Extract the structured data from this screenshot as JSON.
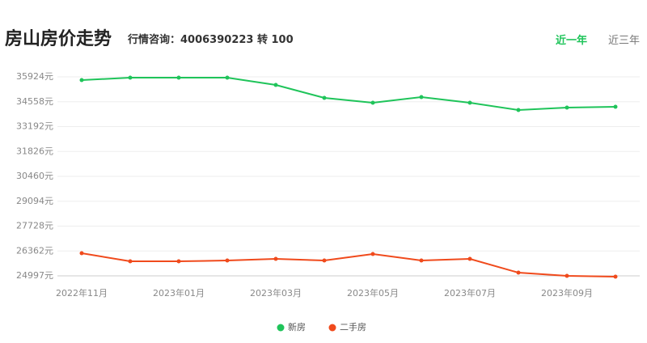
{
  "header": {
    "title": "房山房价走势",
    "hotline": "行情咨询：4006390223 转 100",
    "tabs": [
      "近一年",
      "近三年"
    ]
  },
  "chart_data": {
    "type": "line",
    "categories": [
      "2022年11月",
      null,
      "2023年01月",
      null,
      "2023年03月",
      null,
      "2023年05月",
      null,
      "2023年07月",
      null,
      "2023年09月",
      null
    ],
    "series": [
      {
        "name": "新房",
        "color": "#1fc45a",
        "values": [
          35746,
          35880,
          35880,
          35880,
          35480,
          34769,
          34502,
          34813,
          34502,
          34103,
          34236,
          34280
        ]
      },
      {
        "name": "二手房",
        "color": "#f04a1c",
        "values": [
          26239,
          25795,
          25795,
          25840,
          25929,
          25840,
          26195,
          25840,
          25929,
          25173,
          24997,
          24953
        ]
      }
    ],
    "ylim": [
      24997,
      35924
    ],
    "yticks": [
      {
        "value": 24997,
        "label": "24997元"
      },
      {
        "value": 26362,
        "label": "26362元"
      },
      {
        "value": 27728,
        "label": "27728元"
      },
      {
        "value": 29094,
        "label": "29094元"
      },
      {
        "value": 30460,
        "label": "30460元"
      },
      {
        "value": 31826,
        "label": "31826元"
      },
      {
        "value": 33192,
        "label": "33192元"
      },
      {
        "value": 34558,
        "label": "34558元"
      },
      {
        "value": 35924,
        "label": "35924元"
      }
    ],
    "grid": true,
    "legend": "bottom"
  }
}
